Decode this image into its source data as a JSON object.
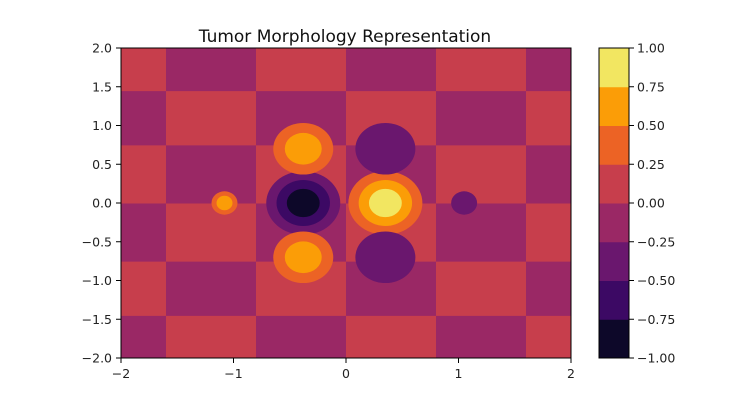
{
  "chart_data": {
    "type": "heatmap",
    "subtype": "filled-contour",
    "title": "Tumor Morphology Representation",
    "xlabel": "",
    "ylabel": "",
    "xlim": [
      -2,
      2
    ],
    "ylim": [
      -2,
      2
    ],
    "x_ticks": [
      -2,
      -1,
      0,
      1,
      2
    ],
    "x_tick_labels": [
      "−2",
      "−1",
      "0",
      "1",
      "2"
    ],
    "y_ticks": [
      -2.0,
      -1.5,
      -1.0,
      -0.5,
      0.0,
      0.5,
      1.0,
      1.5,
      2.0
    ],
    "y_tick_labels": [
      "−2.0",
      "−1.5",
      "−1.0",
      "−0.5",
      "0.0",
      "0.5",
      "1.0",
      "1.5",
      "2.0"
    ],
    "grid": false,
    "colormap": "inferno",
    "colorbar": {
      "position": "right",
      "levels": [
        -1.0,
        -0.75,
        -0.5,
        -0.25,
        0.0,
        0.25,
        0.5,
        0.75,
        1.0
      ],
      "tick_labels": [
        "−1.00",
        "−0.75",
        "−0.50",
        "−0.25",
        "0.00",
        "0.25",
        "0.50",
        "0.75",
        "1.00"
      ],
      "band_colors": [
        "#0d0829",
        "#3c0964",
        "#6a176e",
        "#9a2865",
        "#c73e4c",
        "#ec6325",
        "#fb9d07",
        "#f2e661"
      ]
    },
    "background_pattern": {
      "description_values": "checkerboard of bands 0.00..0.25 and -0.25..0.00",
      "x_boundaries": [
        -2,
        -1.6,
        -0.8,
        0,
        0.8,
        1.6,
        2
      ],
      "y_boundaries": [
        -2,
        -1.45,
        -0.75,
        0,
        0.75,
        1.45,
        2
      ]
    },
    "features": [
      {
        "x": 0.35,
        "y": 0.0,
        "peak": 1.0,
        "sign": "positive"
      },
      {
        "x": -0.38,
        "y": 0.0,
        "peak": -1.0,
        "sign": "negative"
      },
      {
        "x": -0.38,
        "y": 0.7,
        "peak": 0.5,
        "sign": "positive"
      },
      {
        "x": -0.38,
        "y": -0.7,
        "peak": 0.5,
        "sign": "positive"
      },
      {
        "x": 0.35,
        "y": 0.7,
        "peak": -0.5,
        "sign": "negative"
      },
      {
        "x": 0.35,
        "y": -0.7,
        "peak": -0.5,
        "sign": "negative"
      },
      {
        "x": -1.08,
        "y": 0.0,
        "peak": 0.5,
        "sign": "positive"
      },
      {
        "x": 1.05,
        "y": 0.0,
        "peak": -0.5,
        "sign": "negative"
      }
    ]
  }
}
